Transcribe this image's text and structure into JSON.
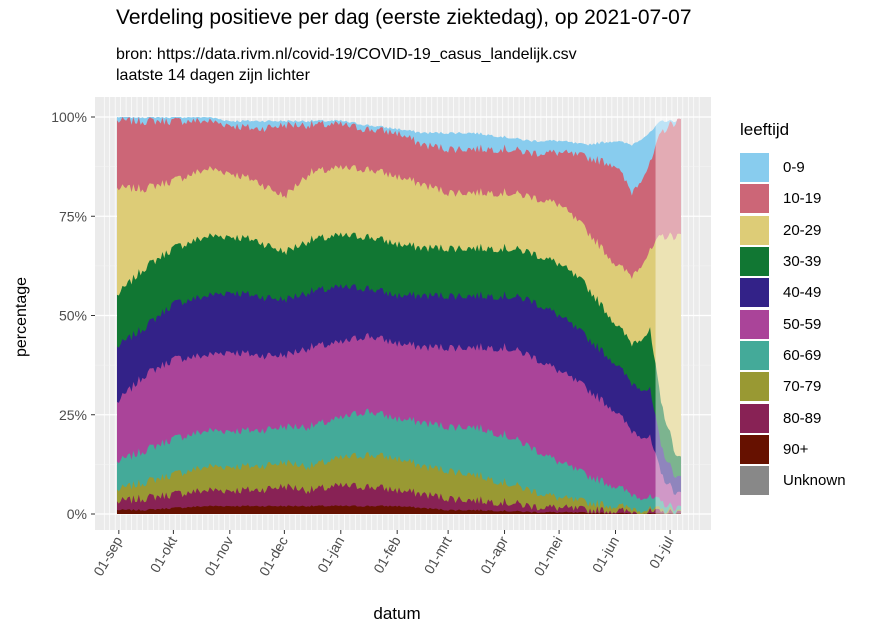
{
  "chart_data": {
    "type": "area",
    "title": "Verdeling positieve per dag (eerste ziektedag), op 2021-07-07",
    "subtitle": [
      "bron: https://data.rivm.nl/covid-19/COVID-19_casus_landelijk.csv",
      "laatste 14 dagen zijn lichter"
    ],
    "xlabel": "datum",
    "ylabel": "percentage",
    "yticks": [
      "0%",
      "25%",
      "50%",
      "75%",
      "100%"
    ],
    "ylim": [
      0,
      100
    ],
    "xticks": [
      "01-sep",
      "01-okt",
      "01-nov",
      "01-dec",
      "01-jan",
      "01-feb",
      "01-mrt",
      "01-apr",
      "01-mei",
      "01-jun",
      "01-jul"
    ],
    "x_range": [
      "2020-08-31",
      "2021-07-07"
    ],
    "lighter_from": "2021-06-23",
    "legend_title": "leeftijd",
    "legend_position": "right",
    "series": [
      {
        "name": "0-9",
        "color": "#88CCEE"
      },
      {
        "name": "10-19",
        "color": "#CC6677"
      },
      {
        "name": "20-29",
        "color": "#DDCC77"
      },
      {
        "name": "30-39",
        "color": "#117733"
      },
      {
        "name": "40-49",
        "color": "#332288"
      },
      {
        "name": "50-59",
        "color": "#AA4499"
      },
      {
        "name": "60-69",
        "color": "#44AA99"
      },
      {
        "name": "70-79",
        "color": "#999933"
      },
      {
        "name": "80-89",
        "color": "#882255"
      },
      {
        "name": "90+",
        "color": "#661100"
      },
      {
        "name": "Unknown",
        "color": "#888888"
      }
    ],
    "cumulative_top_pct_by_date": {
      "series_order_top_down": [
        "0-9",
        "10-19",
        "20-29",
        "30-39",
        "40-49",
        "50-59",
        "60-69",
        "70-79",
        "80-89",
        "90+"
      ],
      "points": [
        {
          "date": "2020-08-31",
          "0-9": 100,
          "10-19": 99,
          "20-29": 82,
          "30-39": 55,
          "40-49": 42,
          "50-59": 28,
          "60-69": 13,
          "70-79": 6,
          "80-89": 3,
          "90+": 1
        },
        {
          "date": "2020-09-15",
          "0-9": 100,
          "10-19": 99,
          "20-29": 82,
          "30-39": 62,
          "40-49": 47,
          "50-59": 35,
          "60-69": 16,
          "70-79": 8,
          "80-89": 4,
          "90+": 1
        },
        {
          "date": "2020-10-01",
          "0-9": 100,
          "10-19": 99,
          "20-29": 84,
          "30-39": 67,
          "40-49": 53,
          "50-59": 39,
          "60-69": 19,
          "70-79": 10,
          "80-89": 5,
          "90+": 1.5
        },
        {
          "date": "2020-10-20",
          "0-9": 100,
          "10-19": 99,
          "20-29": 87,
          "30-39": 70,
          "40-49": 55,
          "50-59": 40,
          "60-69": 21,
          "70-79": 12,
          "80-89": 6,
          "90+": 2
        },
        {
          "date": "2020-11-01",
          "0-9": 99,
          "10-19": 98,
          "20-29": 86,
          "30-39": 70,
          "40-49": 56,
          "50-59": 41,
          "60-69": 21,
          "70-79": 12,
          "80-89": 6,
          "90+": 2
        },
        {
          "date": "2020-11-15",
          "0-9": 99,
          "10-19": 97,
          "20-29": 84,
          "30-39": 69,
          "40-49": 55,
          "50-59": 40,
          "60-69": 21,
          "70-79": 12,
          "80-89": 6,
          "90+": 2
        },
        {
          "date": "2020-12-01",
          "0-9": 99,
          "10-19": 98,
          "20-29": 80,
          "30-39": 66,
          "40-49": 54,
          "50-59": 40,
          "60-69": 22,
          "70-79": 13,
          "80-89": 7,
          "90+": 2
        },
        {
          "date": "2020-12-15",
          "0-9": 99,
          "10-19": 98,
          "20-29": 86,
          "30-39": 69,
          "40-49": 56,
          "50-59": 42,
          "60-69": 22,
          "70-79": 12,
          "80-89": 6,
          "90+": 2
        },
        {
          "date": "2021-01-01",
          "0-9": 99,
          "10-19": 98,
          "20-29": 87,
          "30-39": 70,
          "40-49": 57,
          "50-59": 43,
          "60-69": 24,
          "70-79": 14,
          "80-89": 7,
          "90+": 2
        },
        {
          "date": "2021-01-15",
          "0-9": 98,
          "10-19": 97,
          "20-29": 87,
          "30-39": 70,
          "40-49": 57,
          "50-59": 45,
          "60-69": 26,
          "70-79": 15,
          "80-89": 7,
          "90+": 2
        },
        {
          "date": "2021-02-01",
          "0-9": 97,
          "10-19": 96,
          "20-29": 85,
          "30-39": 68,
          "40-49": 55,
          "50-59": 43,
          "60-69": 24,
          "70-79": 14,
          "80-89": 6,
          "90+": 2
        },
        {
          "date": "2021-02-15",
          "0-9": 96,
          "10-19": 93,
          "20-29": 83,
          "30-39": 67,
          "40-49": 55,
          "50-59": 42,
          "60-69": 23,
          "70-79": 12,
          "80-89": 5,
          "90+": 1.5
        },
        {
          "date": "2021-03-01",
          "0-9": 96,
          "10-19": 92,
          "20-29": 81,
          "30-39": 67,
          "40-49": 55,
          "50-59": 42,
          "60-69": 22,
          "70-79": 11,
          "80-89": 4,
          "90+": 1
        },
        {
          "date": "2021-03-15",
          "0-9": 96,
          "10-19": 92,
          "20-29": 81,
          "30-39": 67,
          "40-49": 55,
          "50-59": 42,
          "60-69": 22,
          "70-79": 10,
          "80-89": 3.5,
          "90+": 1
        },
        {
          "date": "2021-04-01",
          "0-9": 95,
          "10-19": 92,
          "20-29": 81,
          "30-39": 67,
          "40-49": 55,
          "50-59": 42,
          "60-69": 20,
          "70-79": 8,
          "80-89": 3,
          "90+": 0.8
        },
        {
          "date": "2021-04-15",
          "0-9": 94,
          "10-19": 91,
          "20-29": 80,
          "30-39": 66,
          "40-49": 54,
          "50-59": 40,
          "60-69": 17,
          "70-79": 6,
          "80-89": 2,
          "90+": 0.5
        },
        {
          "date": "2021-05-01",
          "0-9": 94,
          "10-19": 91,
          "20-29": 78,
          "30-39": 63,
          "40-49": 50,
          "50-59": 36,
          "60-69": 13,
          "70-79": 4,
          "80-89": 1.5,
          "90+": 0.4
        },
        {
          "date": "2021-05-15",
          "0-9": 93,
          "10-19": 90,
          "20-29": 72,
          "30-39": 58,
          "40-49": 45,
          "50-59": 32,
          "60-69": 10,
          "70-79": 3,
          "80-89": 1,
          "90+": 0.3
        },
        {
          "date": "2021-06-01",
          "0-9": 94,
          "10-19": 88,
          "20-29": 63,
          "30-39": 48,
          "40-49": 38,
          "50-59": 26,
          "60-69": 7,
          "70-79": 2,
          "80-89": 0.8,
          "90+": 0.2
        },
        {
          "date": "2021-06-10",
          "0-9": 93,
          "10-19": 81,
          "20-29": 60,
          "30-39": 43,
          "40-49": 33,
          "50-59": 21,
          "60-69": 5,
          "70-79": 1.5,
          "80-89": 0.5,
          "90+": 0.1
        },
        {
          "date": "2021-06-20",
          "0-9": 96,
          "10-19": 88,
          "20-29": 66,
          "30-39": 46,
          "40-49": 31,
          "50-59": 19,
          "60-69": 4,
          "70-79": 1,
          "80-89": 0.4,
          "90+": 0.1
        },
        {
          "date": "2021-06-26",
          "0-9": 99,
          "10-19": 96,
          "20-29": 70,
          "30-39": 28,
          "40-49": 17,
          "50-59": 10,
          "60-69": 3,
          "70-79": 1,
          "80-89": 0.3,
          "90+": 0.1
        },
        {
          "date": "2021-07-01",
          "0-9": 99,
          "10-19": 98,
          "20-29": 70,
          "30-39": 20,
          "40-49": 12,
          "50-59": 7,
          "60-69": 2,
          "70-79": 1,
          "80-89": 0.3,
          "90+": 0.1
        },
        {
          "date": "2021-07-05",
          "0-9": 99,
          "10-19": 99,
          "20-29": 70,
          "30-39": 14,
          "40-49": 9,
          "50-59": 5,
          "60-69": 1.5,
          "70-79": 0.5,
          "80-89": 0.2,
          "90+": 0.1
        }
      ]
    }
  }
}
